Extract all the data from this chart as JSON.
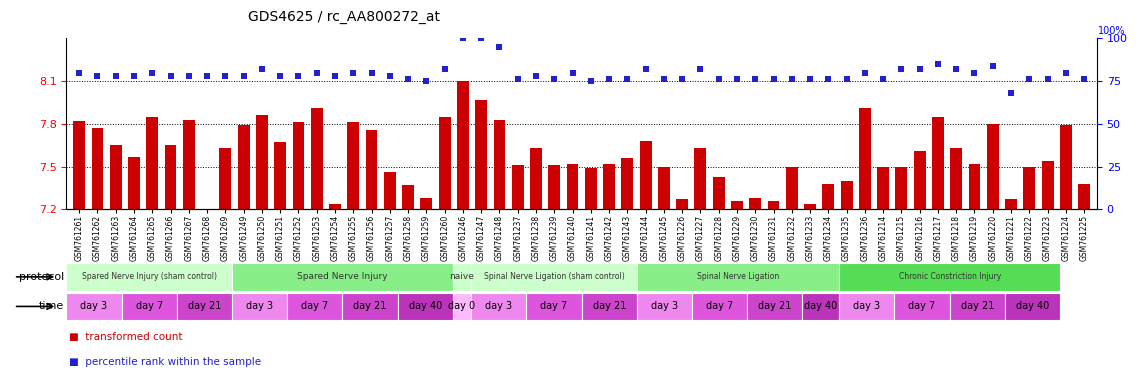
{
  "title": "GDS4625 / rc_AA800272_at",
  "samples": [
    "GSM761261",
    "GSM761262",
    "GSM761263",
    "GSM761264",
    "GSM761265",
    "GSM761266",
    "GSM761267",
    "GSM761268",
    "GSM761269",
    "GSM761249",
    "GSM761250",
    "GSM761251",
    "GSM761252",
    "GSM761253",
    "GSM761254",
    "GSM761255",
    "GSM761256",
    "GSM761257",
    "GSM761258",
    "GSM761259",
    "GSM761260",
    "GSM761246",
    "GSM761247",
    "GSM761248",
    "GSM761237",
    "GSM761238",
    "GSM761239",
    "GSM761240",
    "GSM761241",
    "GSM761242",
    "GSM761243",
    "GSM761244",
    "GSM761245",
    "GSM761226",
    "GSM761227",
    "GSM761228",
    "GSM761229",
    "GSM761230",
    "GSM761231",
    "GSM761232",
    "GSM761233",
    "GSM761234",
    "GSM761235",
    "GSM761236",
    "GSM761214",
    "GSM761215",
    "GSM761216",
    "GSM761217",
    "GSM761218",
    "GSM761219",
    "GSM761220",
    "GSM761221",
    "GSM761222",
    "GSM761223",
    "GSM761224",
    "GSM761225"
  ],
  "bar_values": [
    7.82,
    7.77,
    7.65,
    7.57,
    7.85,
    7.65,
    7.83,
    7.2,
    7.63,
    7.79,
    7.86,
    7.67,
    7.81,
    7.91,
    7.24,
    7.81,
    7.76,
    7.46,
    7.37,
    7.28,
    7.85,
    8.1,
    7.97,
    7.83,
    7.51,
    7.63,
    7.51,
    7.52,
    7.49,
    7.52,
    7.56,
    7.68,
    7.5,
    7.27,
    7.63,
    7.43,
    7.26,
    7.28,
    7.26,
    7.5,
    7.24,
    7.38,
    7.4,
    7.91,
    7.5,
    7.5,
    7.61,
    7.85,
    7.63,
    7.52,
    7.8,
    7.27,
    7.5,
    7.54,
    7.79,
    7.38
  ],
  "percentile_values": [
    80,
    78,
    78,
    78,
    80,
    78,
    78,
    78,
    78,
    78,
    82,
    78,
    78,
    80,
    78,
    80,
    80,
    78,
    76,
    75,
    82,
    100,
    100,
    95,
    76,
    78,
    76,
    80,
    75,
    76,
    76,
    82,
    76,
    76,
    82,
    76,
    76,
    76,
    76,
    76,
    76,
    76,
    76,
    80,
    76,
    82,
    82,
    85,
    82,
    80,
    84,
    68,
    76,
    76,
    80,
    76
  ],
  "ylim_left": [
    7.2,
    8.4
  ],
  "ylim_right": [
    0,
    100
  ],
  "yticks_left": [
    7.2,
    7.5,
    7.8,
    8.1
  ],
  "yticks_right": [
    0,
    25,
    50,
    75,
    100
  ],
  "bar_color": "#cc0000",
  "dot_color": "#2222cc",
  "protocol_groups": [
    {
      "label": "Spared Nerve Injury (sham control)",
      "start": 0,
      "end": 9,
      "color": "#ccffcc"
    },
    {
      "label": "Spared Nerve Injury",
      "start": 9,
      "end": 21,
      "color": "#88ee88"
    },
    {
      "label": "naive",
      "start": 21,
      "end": 22,
      "color": "#ccffcc"
    },
    {
      "label": "Spinal Nerve Ligation (sham control)",
      "start": 22,
      "end": 31,
      "color": "#ccffcc"
    },
    {
      "label": "Spinal Nerve Ligation",
      "start": 31,
      "end": 42,
      "color": "#88ee88"
    },
    {
      "label": "Chronic Constriction Injury",
      "start": 42,
      "end": 54,
      "color": "#55dd55"
    }
  ],
  "time_groups": [
    {
      "label": "day 3",
      "start": 0,
      "end": 3,
      "color": "#ee88ee"
    },
    {
      "label": "day 7",
      "start": 3,
      "end": 6,
      "color": "#dd55dd"
    },
    {
      "label": "day 21",
      "start": 6,
      "end": 9,
      "color": "#cc44cc"
    },
    {
      "label": "day 3",
      "start": 9,
      "end": 12,
      "color": "#ee88ee"
    },
    {
      "label": "day 7",
      "start": 12,
      "end": 15,
      "color": "#dd55dd"
    },
    {
      "label": "day 21",
      "start": 15,
      "end": 18,
      "color": "#cc44cc"
    },
    {
      "label": "day 40",
      "start": 18,
      "end": 21,
      "color": "#bb33bb"
    },
    {
      "label": "day 0",
      "start": 21,
      "end": 22,
      "color": "#ffbbff"
    },
    {
      "label": "day 3",
      "start": 22,
      "end": 25,
      "color": "#ee88ee"
    },
    {
      "label": "day 7",
      "start": 25,
      "end": 28,
      "color": "#dd55dd"
    },
    {
      "label": "day 21",
      "start": 28,
      "end": 31,
      "color": "#cc44cc"
    },
    {
      "label": "day 3",
      "start": 31,
      "end": 34,
      "color": "#ee88ee"
    },
    {
      "label": "day 7",
      "start": 34,
      "end": 37,
      "color": "#dd55dd"
    },
    {
      "label": "day 21",
      "start": 37,
      "end": 40,
      "color": "#cc44cc"
    },
    {
      "label": "day 40",
      "start": 40,
      "end": 42,
      "color": "#bb33bb"
    },
    {
      "label": "day 3",
      "start": 42,
      "end": 45,
      "color": "#ee88ee"
    },
    {
      "label": "day 7",
      "start": 45,
      "end": 48,
      "color": "#dd55dd"
    },
    {
      "label": "day 21",
      "start": 48,
      "end": 51,
      "color": "#cc44cc"
    },
    {
      "label": "day 40",
      "start": 51,
      "end": 54,
      "color": "#bb33bb"
    }
  ]
}
